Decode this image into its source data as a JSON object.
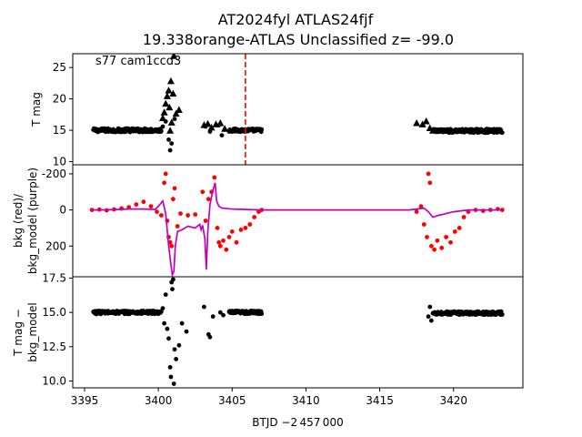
{
  "title": {
    "line1": "AT2024fyl  ATLAS24fjf",
    "line2": "19.338orange-ATLAS Unclassified z= -99.0"
  },
  "colors": {
    "points": "#000000",
    "bkg_points": "#ff0000",
    "bkg_model": "#bf00bf",
    "marker_line": "#ff0000"
  },
  "chart_data": [
    {
      "type": "scatter",
      "panel": "top",
      "ylabel": "T mag",
      "annotation": "s77 cam1ccd3",
      "xlim": [
        3394.2,
        3424.7
      ],
      "ylim": [
        27.2,
        9.5
      ],
      "y_inverted": true,
      "yticks": [
        10,
        15,
        20,
        25
      ],
      "vline_x": 3405.9,
      "series": [
        {
          "marker": "dot",
          "segments": [
            {
              "x0": 3395.6,
              "x1": 3400.2,
              "y": 15.0,
              "jitter": 0.3,
              "n": 140
            },
            {
              "x0": 3404.8,
              "x1": 3407.0,
              "y": 15.0,
              "jitter": 0.25,
              "n": 70
            },
            {
              "x0": 3418.6,
              "x1": 3423.3,
              "y": 14.9,
              "jitter": 0.3,
              "n": 140
            }
          ],
          "points": [
            [
              3400.3,
              15.6
            ],
            [
              3400.5,
              16.4
            ],
            [
              3400.7,
              13.5
            ],
            [
              3400.8,
              11.8
            ],
            [
              3400.9,
              12.9
            ],
            [
              3401.1,
              16.8
            ],
            [
              3403.2,
              15.6
            ],
            [
              3403.5,
              14.8
            ],
            [
              3404.1,
              15.8
            ],
            [
              3404.3,
              14.2
            ]
          ]
        },
        {
          "marker": "triangle",
          "points": [
            [
              3400.3,
              16.9
            ],
            [
              3400.4,
              17.8
            ],
            [
              3400.5,
              19.2
            ],
            [
              3400.6,
              20.4
            ],
            [
              3400.7,
              21.3
            ],
            [
              3400.75,
              18.6
            ],
            [
              3400.8,
              14.9
            ],
            [
              3400.85,
              22.8
            ],
            [
              3400.9,
              16.2
            ],
            [
              3401.0,
              20.8
            ],
            [
              3401.05,
              26.8
            ],
            [
              3401.2,
              17.6
            ],
            [
              3401.4,
              18.2
            ],
            [
              3403.1,
              15.8
            ],
            [
              3403.35,
              16.0
            ],
            [
              3403.6,
              15.4
            ],
            [
              3403.9,
              15.9
            ],
            [
              3404.2,
              16.1
            ],
            [
              3404.5,
              15.2
            ],
            [
              3417.5,
              16.1
            ],
            [
              3417.9,
              15.9
            ],
            [
              3418.15,
              16.4
            ],
            [
              3418.4,
              15.3
            ],
            [
              3418.6,
              14.9
            ]
          ]
        }
      ]
    },
    {
      "type": "line_scatter",
      "panel": "middle",
      "ylabel": "bkg (red)/\nbkg_model (purple)",
      "xlim": [
        3394.2,
        3424.7
      ],
      "ylim": [
        -250,
        370
      ],
      "yticks": [
        -200,
        0,
        200
      ],
      "series": [
        {
          "name": "bkg",
          "marker": "dot",
          "points": [
            [
              3395.5,
              0
            ],
            [
              3396.0,
              -2
            ],
            [
              3396.5,
              2
            ],
            [
              3397.0,
              -3
            ],
            [
              3397.5,
              -8
            ],
            [
              3398.0,
              -15
            ],
            [
              3398.5,
              -30
            ],
            [
              3399.0,
              -45
            ],
            [
              3399.5,
              -20
            ],
            [
              3399.9,
              10
            ],
            [
              3400.2,
              30
            ],
            [
              3400.4,
              -150
            ],
            [
              3400.5,
              -200
            ],
            [
              3400.6,
              60
            ],
            [
              3400.7,
              150
            ],
            [
              3400.8,
              180
            ],
            [
              3400.9,
              200
            ],
            [
              3401.0,
              -60
            ],
            [
              3401.1,
              -120
            ],
            [
              3401.3,
              90
            ],
            [
              3401.5,
              20
            ],
            [
              3402.0,
              30
            ],
            [
              3402.5,
              25
            ],
            [
              3403.0,
              -100
            ],
            [
              3403.2,
              60
            ],
            [
              3403.4,
              -60
            ],
            [
              3403.6,
              -100
            ],
            [
              3403.8,
              -180
            ],
            [
              3404.0,
              100
            ],
            [
              3404.1,
              180
            ],
            [
              3404.2,
              200
            ],
            [
              3404.4,
              170
            ],
            [
              3404.6,
              220
            ],
            [
              3404.8,
              150
            ],
            [
              3405.0,
              120
            ],
            [
              3405.3,
              180
            ],
            [
              3405.6,
              110
            ],
            [
              3405.9,
              100
            ],
            [
              3406.2,
              80
            ],
            [
              3406.5,
              40
            ],
            [
              3406.8,
              10
            ],
            [
              3407.0,
              0
            ],
            [
              3417.5,
              10
            ],
            [
              3417.8,
              -20
            ],
            [
              3418.0,
              80
            ],
            [
              3418.2,
              150
            ],
            [
              3418.3,
              -200
            ],
            [
              3418.4,
              -150
            ],
            [
              3418.5,
              200
            ],
            [
              3418.7,
              220
            ],
            [
              3418.9,
              170
            ],
            [
              3419.2,
              210
            ],
            [
              3419.5,
              150
            ],
            [
              3419.8,
              180
            ],
            [
              3420.1,
              120
            ],
            [
              3420.4,
              100
            ],
            [
              3420.7,
              40
            ],
            [
              3421.0,
              10
            ],
            [
              3421.5,
              0
            ],
            [
              3422.0,
              5
            ],
            [
              3422.5,
              0
            ],
            [
              3423.0,
              -5
            ],
            [
              3423.3,
              0
            ]
          ]
        },
        {
          "name": "bkg_model",
          "marker": "line",
          "points": [
            [
              3395.5,
              0
            ],
            [
              3396.0,
              0
            ],
            [
              3397.0,
              -2
            ],
            [
              3398.0,
              -5
            ],
            [
              3399.0,
              -5
            ],
            [
              3399.8,
              -3
            ],
            [
              3400.1,
              -30
            ],
            [
              3400.3,
              -50
            ],
            [
              3400.5,
              20
            ],
            [
              3400.7,
              200
            ],
            [
              3400.85,
              300
            ],
            [
              3400.95,
              360
            ],
            [
              3401.05,
              340
            ],
            [
              3401.15,
              200
            ],
            [
              3401.3,
              120
            ],
            [
              3401.6,
              110
            ],
            [
              3402.0,
              90
            ],
            [
              3402.5,
              100
            ],
            [
              3402.8,
              80
            ],
            [
              3402.9,
              110
            ],
            [
              3403.0,
              85
            ],
            [
              3403.15,
              160
            ],
            [
              3403.25,
              330
            ],
            [
              3403.35,
              120
            ],
            [
              3403.5,
              -30
            ],
            [
              3403.7,
              -110
            ],
            [
              3403.85,
              -150
            ],
            [
              3403.95,
              -50
            ],
            [
              3404.1,
              -20
            ],
            [
              3404.3,
              -10
            ],
            [
              3405.0,
              -5
            ],
            [
              3407.0,
              0
            ],
            [
              3410.0,
              0
            ],
            [
              3415.0,
              0
            ],
            [
              3417.0,
              0
            ],
            [
              3418.0,
              -10
            ],
            [
              3418.3,
              10
            ],
            [
              3418.6,
              40
            ],
            [
              3419.0,
              30
            ],
            [
              3419.5,
              20
            ],
            [
              3420.0,
              10
            ],
            [
              3421.0,
              0
            ],
            [
              3423.3,
              0
            ]
          ]
        }
      ]
    },
    {
      "type": "scatter",
      "panel": "bottom",
      "ylabel": "T mag −\nbkg_model",
      "xlabel": "BTJD −2 457 000",
      "xlim": [
        3394.2,
        3424.7
      ],
      "ylim": [
        17.6,
        9.5
      ],
      "y_inverted": true,
      "yticks": [
        10.0,
        12.5,
        15.0,
        17.5
      ],
      "ytick_labels": [
        "10.0",
        "12.5",
        "15.0",
        "17.5"
      ],
      "xticks": [
        3395,
        3400,
        3405,
        3410,
        3415,
        3420
      ],
      "xtick_labels": [
        "3395",
        "3400",
        "3405",
        "3410",
        "3415",
        "3420"
      ],
      "series": [
        {
          "marker": "dot",
          "segments": [
            {
              "x0": 3395.6,
              "x1": 3400.2,
              "y": 15.0,
              "jitter": 0.12,
              "n": 140
            },
            {
              "x0": 3404.8,
              "x1": 3407.0,
              "y": 15.0,
              "jitter": 0.12,
              "n": 70
            },
            {
              "x0": 3418.6,
              "x1": 3423.3,
              "y": 14.95,
              "jitter": 0.12,
              "n": 140
            }
          ],
          "points": [
            [
              3400.3,
              15.3
            ],
            [
              3400.4,
              14.2
            ],
            [
              3400.5,
              16.3
            ],
            [
              3400.6,
              13.8
            ],
            [
              3400.7,
              13.1
            ],
            [
              3400.8,
              11.0
            ],
            [
              3400.85,
              10.3
            ],
            [
              3400.9,
              17.2
            ],
            [
              3400.95,
              16.7
            ],
            [
              3401.0,
              17.4
            ],
            [
              3401.05,
              9.8
            ],
            [
              3401.1,
              12.3
            ],
            [
              3401.2,
              11.6
            ],
            [
              3401.4,
              12.6
            ],
            [
              3401.6,
              14.2
            ],
            [
              3401.9,
              13.6
            ],
            [
              3403.1,
              15.4
            ],
            [
              3403.4,
              13.4
            ],
            [
              3403.5,
              13.2
            ],
            [
              3403.7,
              14.7
            ],
            [
              3404.2,
              15.0
            ],
            [
              3404.4,
              14.8
            ],
            [
              3418.3,
              14.7
            ],
            [
              3418.4,
              15.4
            ],
            [
              3418.5,
              14.4
            ]
          ]
        }
      ]
    }
  ]
}
